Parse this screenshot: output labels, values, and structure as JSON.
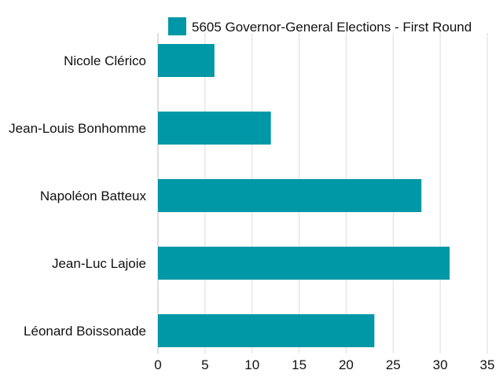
{
  "chart_data": {
    "type": "bar",
    "orientation": "horizontal",
    "categories": [
      "Nicole Clérico",
      "Jean-Louis Bonhomme",
      "Napoléon Batteux",
      "Jean-Luc Lajoie",
      "Léonard Boissonade"
    ],
    "series": [
      {
        "name": "5605 Governor-General Elections - First Round",
        "values": [
          6,
          12,
          28,
          31,
          23
        ],
        "color": "#0097a7"
      }
    ],
    "x_ticks": [
      "0",
      "5",
      "10",
      "15",
      "20",
      "25",
      "30",
      "35"
    ],
    "xlim": [
      0,
      35
    ],
    "grid": "vertical",
    "legend_position": "top"
  }
}
